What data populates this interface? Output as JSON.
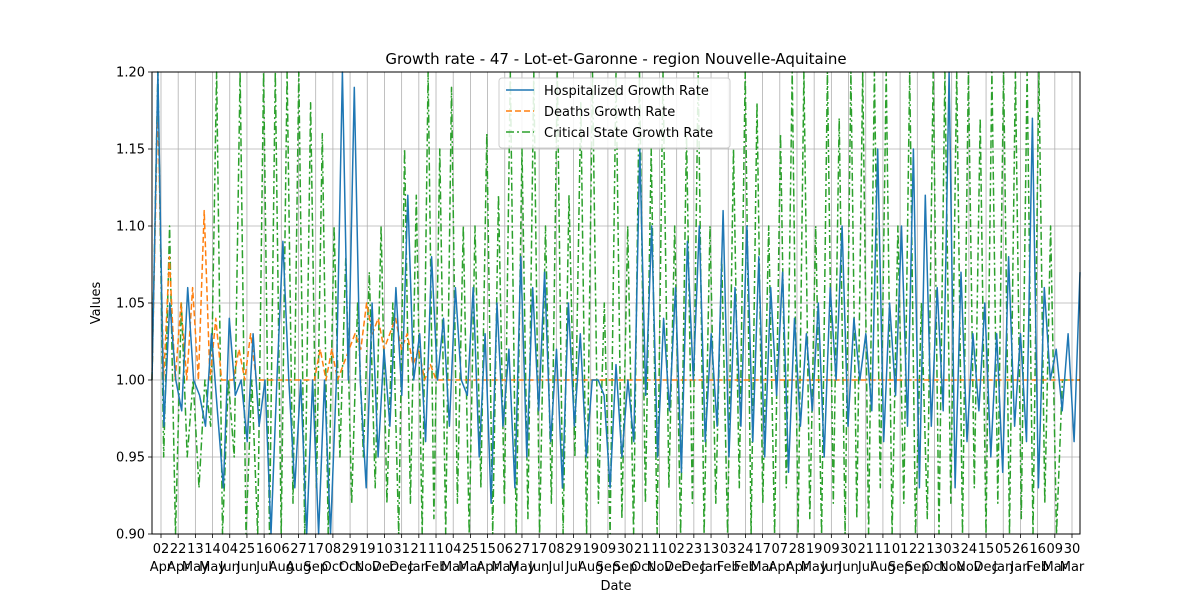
{
  "chart_data": {
    "type": "line",
    "title": "Growth rate - 47 - Lot-et-Garonne - region Nouvelle-Aquitaine",
    "xlabel": "Date",
    "ylabel": "Values",
    "ylim": [
      0.9,
      1.2
    ],
    "yticks": [
      "0.90",
      "0.95",
      "1.00",
      "1.05",
      "1.10",
      "1.15",
      "1.20"
    ],
    "grid": true,
    "legend_position": "top-center",
    "x_tick_labels": [
      {
        "day": "02",
        "month": "Apr"
      },
      {
        "day": "22",
        "month": "Apr"
      },
      {
        "day": "13",
        "month": "May"
      },
      {
        "day": "14",
        "month": "May"
      },
      {
        "day": "04",
        "month": "Jun"
      },
      {
        "day": "25",
        "month": "Jun"
      },
      {
        "day": "16",
        "month": "Jul"
      },
      {
        "day": "06",
        "month": "Aug"
      },
      {
        "day": "27",
        "month": "Aug"
      },
      {
        "day": "17",
        "month": "Sep"
      },
      {
        "day": "08",
        "month": "Oct"
      },
      {
        "day": "29",
        "month": "Oct"
      },
      {
        "day": "19",
        "month": "Nov"
      },
      {
        "day": "10",
        "month": "Dec"
      },
      {
        "day": "31",
        "month": "Dec"
      },
      {
        "day": "21",
        "month": "Jan"
      },
      {
        "day": "11",
        "month": "Feb"
      },
      {
        "day": "04",
        "month": "Mar"
      },
      {
        "day": "25",
        "month": "Mar"
      },
      {
        "day": "15",
        "month": "Apr"
      },
      {
        "day": "06",
        "month": "May"
      },
      {
        "day": "27",
        "month": "May"
      },
      {
        "day": "17",
        "month": "Jun"
      },
      {
        "day": "08",
        "month": "Jul"
      },
      {
        "day": "29",
        "month": "Jul"
      },
      {
        "day": "19",
        "month": "Aug"
      },
      {
        "day": "09",
        "month": "Sep"
      },
      {
        "day": "30",
        "month": "Sep"
      },
      {
        "day": "21",
        "month": "Oct"
      },
      {
        "day": "11",
        "month": "Nov"
      },
      {
        "day": "02",
        "month": "Dec"
      },
      {
        "day": "23",
        "month": "Dec"
      },
      {
        "day": "13",
        "month": "Jan"
      },
      {
        "day": "03",
        "month": "Feb"
      },
      {
        "day": "24",
        "month": "Feb"
      },
      {
        "day": "17",
        "month": "Mar"
      },
      {
        "day": "07",
        "month": "Apr"
      },
      {
        "day": "28",
        "month": "Apr"
      },
      {
        "day": "19",
        "month": "May"
      },
      {
        "day": "09",
        "month": "Jun"
      },
      {
        "day": "30",
        "month": "Jun"
      },
      {
        "day": "21",
        "month": "Jul"
      },
      {
        "day": "11",
        "month": "Aug"
      },
      {
        "day": "01",
        "month": "Sep"
      },
      {
        "day": "22",
        "month": "Sep"
      },
      {
        "day": "13",
        "month": "Oct"
      },
      {
        "day": "03",
        "month": "Nov"
      },
      {
        "day": "24",
        "month": "Nov"
      },
      {
        "day": "15",
        "month": "Dec"
      },
      {
        "day": "05",
        "month": "Jan"
      },
      {
        "day": "26",
        "month": "Jan"
      },
      {
        "day": "16",
        "month": "Feb"
      },
      {
        "day": "09",
        "month": "Mar"
      },
      {
        "day": "30",
        "month": "Mar"
      }
    ],
    "series": [
      {
        "name": "Hospitalized Growth Rate",
        "color": "#1f77b4",
        "style": "solid",
        "values": [
          1.0,
          1.2,
          0.97,
          1.05,
          1.0,
          0.98,
          1.06,
          1.0,
          0.99,
          0.97,
          1.03,
          0.98,
          0.93,
          1.04,
          0.99,
          1.0,
          0.96,
          1.03,
          0.97,
          1.0,
          0.9,
          1.0,
          1.09,
          1.0,
          0.93,
          1.0,
          0.9,
          1.0,
          0.9,
          1.0,
          0.9,
          1.0,
          1.2,
          1.0,
          1.19,
          1.0,
          0.93,
          1.05,
          0.95,
          1.02,
          0.97,
          1.06,
          0.99,
          1.12,
          1.0,
          1.03,
          0.96,
          1.08,
          1.0,
          1.04,
          0.97,
          1.06,
          1.0,
          0.99,
          1.06,
          0.95,
          1.03,
          0.92,
          1.05,
          0.97,
          1.02,
          0.93,
          1.08,
          0.95,
          1.06,
          0.98,
          1.07,
          0.96,
          1.02,
          0.93,
          1.05,
          0.97,
          1.03,
          0.95,
          1.0,
          1.0,
          0.99,
          0.93,
          1.01,
          0.95,
          1.0,
          0.96,
          1.15,
          0.99,
          1.1,
          0.95,
          1.04,
          0.98,
          1.06,
          0.94,
          1.09,
          1.0,
          1.1,
          0.96,
          1.03,
          0.97,
          1.11,
          0.95,
          1.06,
          0.97,
          1.1,
          0.96,
          1.08,
          0.95,
          1.06,
          0.99,
          1.07,
          0.94,
          1.04,
          0.97,
          1.03,
          0.98,
          1.05,
          0.95,
          1.06,
          1.0,
          1.1,
          0.97,
          1.04,
          1.0,
          1.03,
          0.98,
          1.15,
          0.96,
          1.05,
          0.99,
          1.1,
          0.97,
          1.15,
          0.93,
          1.12,
          0.97,
          1.06,
          0.98,
          1.2,
          0.93,
          1.07,
          0.96,
          1.03,
          0.98,
          1.05,
          0.95,
          1.03,
          0.94,
          1.08,
          0.97,
          1.03,
          0.96,
          1.17,
          0.93,
          1.06,
          1.0,
          1.02,
          0.98,
          1.03,
          0.96,
          1.07
        ]
      },
      {
        "name": "Deaths Growth Rate",
        "color": "#ff7f0e",
        "style": "dashed",
        "values": [
          1.0,
          1.18,
          1.0,
          1.08,
          1.0,
          1.05,
          1.0,
          1.06,
          1.0,
          1.11,
          1.0,
          1.04,
          1.0,
          1.0,
          1.0,
          1.02,
          1.0,
          1.03,
          1.0,
          1.0,
          1.0,
          1.0,
          1.0,
          1.0,
          1.0,
          1.0,
          1.0,
          1.0,
          1.0,
          1.02,
          1.0,
          1.02,
          1.0,
          1.01,
          1.02,
          1.03,
          1.02,
          1.05,
          1.03,
          1.04,
          1.02,
          1.03,
          1.04,
          1.02,
          1.03,
          1.01,
          1.02,
          1.0,
          1.01,
          1.0,
          1.0,
          1.0,
          1.0,
          1.0,
          1.0,
          1.0,
          1.0,
          1.0,
          1.0,
          1.0,
          1.0,
          1.0,
          1.0,
          1.0,
          1.0,
          1.0,
          1.0,
          1.0,
          1.0,
          1.0,
          1.0,
          1.0,
          1.0,
          1.0,
          1.0,
          1.0,
          1.0,
          1.0,
          1.0,
          1.0,
          1.0,
          1.0,
          1.0,
          1.0,
          1.0,
          1.0,
          1.0,
          1.0,
          1.0,
          1.0,
          1.0,
          1.0,
          1.0,
          1.0,
          1.0,
          1.0,
          1.0,
          1.0,
          1.0,
          1.0,
          1.0,
          1.0,
          1.0,
          1.0,
          1.0,
          1.0,
          1.0,
          1.0,
          1.0,
          1.0,
          1.0,
          1.0,
          1.0,
          1.0,
          1.0,
          1.0,
          1.0,
          1.0,
          1.0,
          1.0,
          1.0,
          1.0,
          1.0,
          1.0,
          1.0,
          1.0,
          1.0,
          1.0,
          1.0,
          1.0,
          1.0,
          1.0,
          1.0,
          1.0,
          1.0,
          1.0,
          1.0,
          1.0,
          1.0,
          1.0,
          1.0,
          1.0,
          1.0,
          1.0,
          1.0,
          1.0,
          1.0,
          1.0,
          1.0,
          1.0,
          1.0,
          1.0,
          1.0,
          1.0,
          1.0,
          1.0,
          1.0,
          1.0,
          1.0,
          1.0,
          1.0
        ]
      },
      {
        "name": "Critical State Growth Rate",
        "color": "#2ca02c",
        "style": "dashdot",
        "values": [
          1.0,
          1.2,
          0.95,
          1.1,
          0.9,
          1.05,
          0.95,
          1.0,
          0.93,
          1.0,
          0.97,
          1.2,
          0.9,
          1.0,
          0.95,
          1.2,
          0.9,
          1.0,
          0.9,
          1.2,
          0.9,
          1.2,
          0.9,
          1.2,
          0.92,
          1.2,
          0.9,
          1.18,
          0.93,
          1.16,
          0.9,
          1.1,
          0.95,
          1.08,
          0.92,
          1.05,
          0.95,
          1.07,
          0.93,
          1.1,
          0.92,
          1.05,
          0.9,
          1.15,
          0.92,
          1.12,
          0.9,
          1.2,
          0.91,
          1.15,
          0.9,
          1.19,
          0.92,
          1.1,
          0.9,
          1.1,
          0.93,
          1.16,
          0.9,
          1.12,
          0.92,
          1.2,
          0.9,
          1.15,
          0.91,
          1.2,
          0.9,
          1.1,
          0.92,
          1.2,
          0.9,
          1.12,
          0.95,
          1.18,
          0.9,
          1.2,
          0.92,
          1.05,
          0.9,
          1.2,
          0.91,
          1.1,
          0.9,
          1.2,
          0.92,
          1.15,
          0.9,
          1.2,
          0.93,
          1.1,
          0.9,
          1.16,
          0.92,
          1.2,
          0.9,
          1.1,
          0.92,
          1.08,
          0.9,
          1.15,
          0.93,
          1.2,
          0.9,
          1.18,
          0.92,
          1.1,
          0.9,
          1.16,
          0.93,
          1.2,
          0.9,
          1.2,
          0.91,
          1.1,
          0.9,
          1.2,
          0.92,
          1.17,
          0.9,
          1.2,
          0.91,
          1.2,
          0.9,
          1.2,
          0.93,
          1.2,
          0.9,
          1.1,
          0.92,
          1.2,
          0.9,
          1.05,
          0.91,
          1.2,
          0.9,
          1.2,
          0.92,
          1.2,
          0.9,
          1.2,
          0.93,
          1.17,
          0.9,
          1.2,
          0.92,
          1.2,
          0.9,
          1.2,
          0.91,
          1.2,
          0.9,
          1.2,
          0.92,
          1.1,
          0.9,
          1.0,
          1.0,
          1.0,
          1.0
        ]
      }
    ]
  }
}
